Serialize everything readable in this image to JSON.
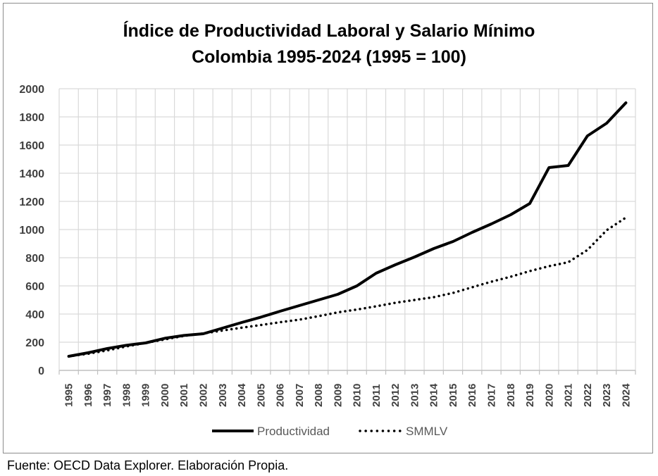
{
  "chart_data": {
    "type": "line",
    "title_lines": [
      "Índice de Productividad Laboral y Salario Mínimo",
      "Colombia 1995-2024 (1995 = 100)"
    ],
    "x": [
      "1995",
      "1996",
      "1997",
      "1998",
      "1999",
      "2000",
      "2001",
      "2002",
      "2003",
      "2004",
      "2005",
      "2006",
      "2007",
      "2008",
      "2009",
      "2010",
      "2011",
      "2012",
      "2013",
      "2014",
      "2015",
      "2016",
      "2017",
      "2018",
      "2019",
      "2020",
      "2021",
      "2022",
      "2023",
      "2024"
    ],
    "series": [
      {
        "name": "Productividad",
        "style": "solid",
        "color": "#000000",
        "values": [
          100,
          125,
          155,
          178,
          195,
          228,
          248,
          260,
          300,
          340,
          378,
          420,
          460,
          500,
          540,
          600,
          690,
          750,
          805,
          865,
          915,
          980,
          1040,
          1105,
          1185,
          1440,
          1455,
          1665,
          1755,
          1900
        ]
      },
      {
        "name": "SMMLV",
        "style": "dotted",
        "color": "#000000",
        "values": [
          100,
          118,
          142,
          170,
          195,
          220,
          245,
          262,
          283,
          303,
          322,
          342,
          360,
          385,
          412,
          432,
          455,
          480,
          500,
          520,
          550,
          590,
          630,
          665,
          705,
          740,
          768,
          855,
          995,
          1085
        ]
      }
    ],
    "ylim": [
      0,
      2000
    ],
    "yticks": [
      0,
      200,
      400,
      600,
      800,
      1000,
      1200,
      1400,
      1600,
      1800,
      2000
    ],
    "grid": true,
    "legend_position": "bottom"
  },
  "footer": {
    "source": "Fuente: OECD Data Explorer. Elaboración Propia."
  }
}
